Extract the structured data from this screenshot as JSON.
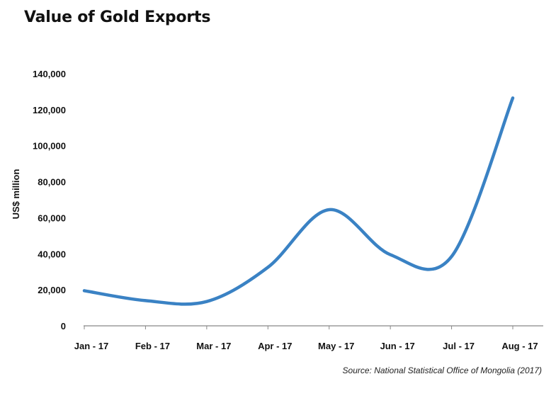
{
  "chart_data": {
    "type": "line",
    "title": "Value of Gold Exports",
    "xlabel": "",
    "ylabel": "US$ million",
    "categories": [
      "Jan - 17",
      "Feb - 17",
      "Mar - 17",
      "Apr - 17",
      "May - 17",
      "Jun - 17",
      "Jul - 17",
      "Aug - 17"
    ],
    "series": [
      {
        "values": [
          19500,
          14000,
          13500,
          32500,
          64500,
          39500,
          38500,
          126500
        ],
        "color": "#3a82c4"
      }
    ],
    "ylim": [
      0,
      140000
    ],
    "yticks": [
      "0",
      "20,000",
      "40,000",
      "60,000",
      "80,000",
      "100,000",
      "120,000",
      "140,000"
    ],
    "grid": false,
    "legend": "none",
    "source": "Source: National Statistical Office of Mongolia (2017)"
  }
}
